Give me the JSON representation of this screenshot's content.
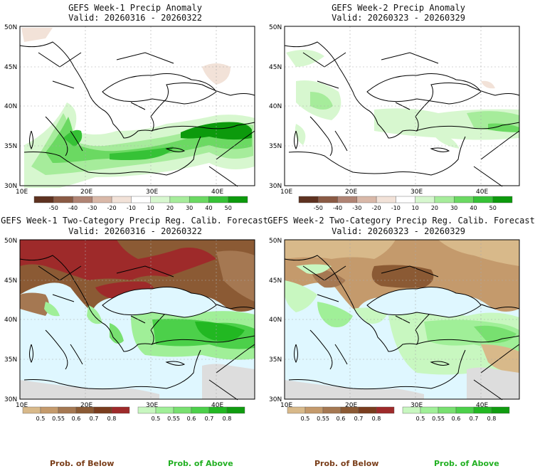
{
  "panels": {
    "p1": {
      "title": "GEFS Week-1 Precip Anomaly",
      "valid": "Valid: 20260316 - 20260322"
    },
    "p2": {
      "title": "GEFS Week-2 Precip Anomaly",
      "valid": "Valid: 20260323 - 20260329"
    },
    "p3": {
      "title": "GEFS Week-1 Two-Category Precip Reg. Calib. Forecast",
      "valid": "Valid: 20260316 - 20260322"
    },
    "p4": {
      "title": "GEFS Week-2 Two-Category Precip Reg. Calib. Forecast",
      "valid": "Valid: 20260323 - 20260329"
    }
  },
  "axes": {
    "lat_labels": [
      "50N",
      "45N",
      "40N",
      "35N",
      "30N"
    ],
    "lon_labels": [
      "10E",
      "20E",
      "30E",
      "40E"
    ]
  },
  "anomaly_colorbar": {
    "ticks": [
      "-50",
      "-40",
      "-30",
      "-20",
      "-10",
      "10",
      "20",
      "30",
      "40",
      "50"
    ],
    "colors": [
      "#5e3220",
      "#8a5a44",
      "#b08474",
      "#d9b8a8",
      "#f2e2d8",
      "#ffffff",
      "#d7f7cf",
      "#a6ec9b",
      "#6bd962",
      "#36c236",
      "#0c9a0c"
    ]
  },
  "prob_below_colorbar": {
    "ticks": [
      "0.5",
      "0.55",
      "0.6",
      "0.7",
      "0.8"
    ],
    "colors": [
      "#d8b98a",
      "#c49a6c",
      "#a57852",
      "#8b5a34",
      "#7a3d1e",
      "#9e2a2a"
    ]
  },
  "prob_above_colorbar": {
    "ticks": [
      "0.5",
      "0.55",
      "0.6",
      "0.7",
      "0.8"
    ],
    "colors": [
      "#c8f7c0",
      "#a0ef98",
      "#78e070",
      "#4cd04a",
      "#22b822",
      "#109c10"
    ]
  },
  "legend": {
    "below": "Prob. of Below",
    "above": "Prob. of Above"
  },
  "colors": {
    "ocean": "#dff7ff",
    "land_white": "#ffffff",
    "grid": "#aaaaaa"
  }
}
